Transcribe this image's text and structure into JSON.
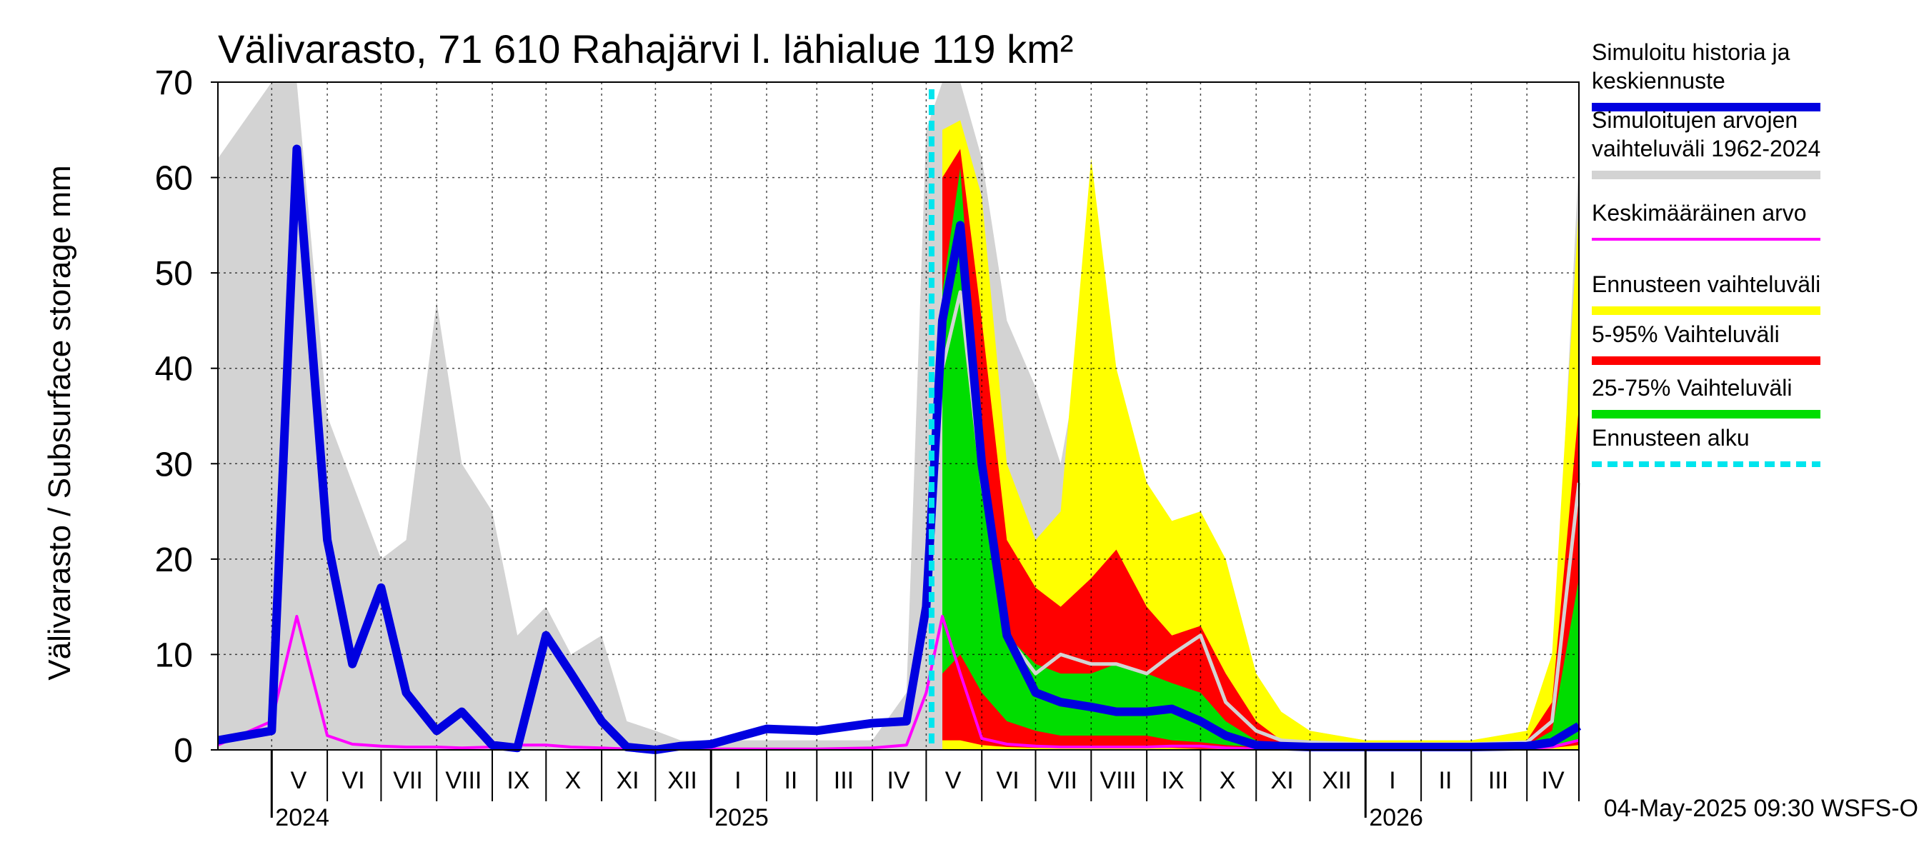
{
  "chart_data": {
    "type": "area",
    "title": "Välivarasto, 71 610 Rahajärvi l. lähialue 119 km²",
    "ylabel": "Välivarasto / Subsurface storage  mm",
    "ylim": [
      0,
      70
    ],
    "yticks": [
      0,
      10,
      20,
      30,
      40,
      50,
      60,
      70
    ],
    "grid": true,
    "legend_position": "right",
    "x_start": "2024-04-01",
    "x_end": "2026-04-30",
    "forecast_start": "2025-05-04",
    "months": [
      {
        "label": "V",
        "start": "2024-05-01",
        "end": "2024-05-31"
      },
      {
        "label": "VI",
        "start": "2024-06-01",
        "end": "2024-06-30"
      },
      {
        "label": "VII",
        "start": "2024-07-01",
        "end": "2024-07-31"
      },
      {
        "label": "VIII",
        "start": "2024-08-01",
        "end": "2024-08-31"
      },
      {
        "label": "IX",
        "start": "2024-09-01",
        "end": "2024-09-30"
      },
      {
        "label": "X",
        "start": "2024-10-01",
        "end": "2024-10-31"
      },
      {
        "label": "XI",
        "start": "2024-11-01",
        "end": "2024-11-30"
      },
      {
        "label": "XII",
        "start": "2024-12-01",
        "end": "2024-12-31"
      },
      {
        "label": "I",
        "start": "2025-01-01",
        "end": "2025-01-31"
      },
      {
        "label": "II",
        "start": "2025-02-01",
        "end": "2025-02-28"
      },
      {
        "label": "III",
        "start": "2025-03-01",
        "end": "2025-03-31"
      },
      {
        "label": "IV",
        "start": "2025-04-01",
        "end": "2025-04-30"
      },
      {
        "label": "V",
        "start": "2025-05-01",
        "end": "2025-05-31"
      },
      {
        "label": "VI",
        "start": "2025-06-01",
        "end": "2025-06-30"
      },
      {
        "label": "VII",
        "start": "2025-07-01",
        "end": "2025-07-31"
      },
      {
        "label": "VIII",
        "start": "2025-08-01",
        "end": "2025-08-31"
      },
      {
        "label": "IX",
        "start": "2025-09-01",
        "end": "2025-09-30"
      },
      {
        "label": "X",
        "start": "2025-10-01",
        "end": "2025-10-31"
      },
      {
        "label": "XI",
        "start": "2025-11-01",
        "end": "2025-11-30"
      },
      {
        "label": "XII",
        "start": "2025-12-01",
        "end": "2025-12-31"
      },
      {
        "label": "I",
        "start": "2026-01-01",
        "end": "2026-01-31"
      },
      {
        "label": "II",
        "start": "2026-02-01",
        "end": "2026-02-28"
      },
      {
        "label": "III",
        "start": "2026-03-01",
        "end": "2026-03-31"
      },
      {
        "label": "IV",
        "start": "2026-04-01",
        "end": "2026-04-30"
      }
    ],
    "years": [
      {
        "label": "2024",
        "date": "2024-05-01"
      },
      {
        "label": "2025",
        "date": "2025-01-01"
      },
      {
        "label": "2026",
        "date": "2026-01-01"
      }
    ],
    "dates": [
      "2024-04-01",
      "2024-05-01",
      "2024-05-15",
      "2024-06-01",
      "2024-06-15",
      "2024-07-01",
      "2024-07-15",
      "2024-08-01",
      "2024-08-15",
      "2024-09-01",
      "2024-09-15",
      "2024-10-01",
      "2024-10-15",
      "2024-11-01",
      "2024-11-15",
      "2024-12-01",
      "2024-12-15",
      "2025-01-01",
      "2025-02-01",
      "2025-03-01",
      "2025-04-01",
      "2025-04-20",
      "2025-05-01",
      "2025-05-10",
      "2025-05-20",
      "2025-06-01",
      "2025-06-15",
      "2025-07-01",
      "2025-07-15",
      "2025-08-01",
      "2025-08-15",
      "2025-09-01",
      "2025-09-15",
      "2025-10-01",
      "2025-10-15",
      "2025-11-01",
      "2025-11-15",
      "2025-12-01",
      "2026-01-01",
      "2026-02-01",
      "2026-03-01",
      "2026-04-01",
      "2026-04-15",
      "2026-04-30"
    ],
    "series": [
      {
        "name": "Simuloitujen arvojen vaihteluväli 1962-2024",
        "kind": "band",
        "color": "#d3d3d3",
        "low": [
          0,
          0,
          0,
          0,
          0,
          0,
          0,
          0,
          0,
          0,
          0,
          0,
          0,
          0,
          0,
          0,
          0,
          0,
          0,
          0,
          0,
          0,
          0,
          0,
          0,
          0,
          0,
          0,
          0,
          0,
          0,
          0,
          0,
          0,
          0,
          0,
          0,
          0,
          0,
          0,
          0,
          0,
          0,
          0
        ],
        "high": [
          62,
          70,
          70,
          35,
          28,
          20,
          22,
          47,
          30,
          25,
          12,
          15,
          10,
          12,
          3,
          2,
          1,
          1,
          1,
          1,
          1,
          6,
          65,
          70,
          70,
          62,
          45,
          38,
          30,
          48,
          40,
          25,
          18,
          20,
          20,
          8,
          3,
          2,
          1,
          1,
          1,
          2,
          5,
          62
        ]
      },
      {
        "name": "Ennusteen vaihteluväli",
        "kind": "band",
        "color": "#ffff00",
        "low": [
          null,
          null,
          null,
          null,
          null,
          null,
          null,
          null,
          null,
          null,
          null,
          null,
          null,
          null,
          null,
          null,
          null,
          null,
          null,
          null,
          null,
          null,
          null,
          0,
          0,
          0,
          0,
          0,
          0,
          0,
          0,
          0,
          0,
          0,
          0,
          0,
          0,
          0,
          0,
          0,
          0,
          0,
          0,
          0
        ],
        "high": [
          null,
          null,
          null,
          null,
          null,
          null,
          null,
          null,
          null,
          null,
          null,
          null,
          null,
          null,
          null,
          null,
          null,
          null,
          null,
          null,
          null,
          null,
          null,
          65,
          66,
          58,
          30,
          22,
          25,
          62,
          40,
          28,
          24,
          25,
          20,
          8,
          4,
          2,
          1,
          1,
          1,
          2,
          10,
          57
        ]
      },
      {
        "name": "5-95% Vaihteluväli",
        "kind": "band",
        "color": "#ff0000",
        "low": [
          null,
          null,
          null,
          null,
          null,
          null,
          null,
          null,
          null,
          null,
          null,
          null,
          null,
          null,
          null,
          null,
          null,
          null,
          null,
          null,
          null,
          null,
          null,
          1,
          1,
          0.5,
          0.3,
          0.2,
          0.2,
          0.2,
          0.2,
          0.2,
          0.2,
          0.1,
          0.1,
          0.1,
          0.1,
          0.1,
          0.1,
          0.1,
          0.1,
          0.1,
          0.2,
          0.5
        ],
        "high": [
          null,
          null,
          null,
          null,
          null,
          null,
          null,
          null,
          null,
          null,
          null,
          null,
          null,
          null,
          null,
          null,
          null,
          null,
          null,
          null,
          null,
          null,
          null,
          60,
          63,
          45,
          22,
          17,
          15,
          18,
          21,
          15,
          12,
          13,
          8,
          3,
          1,
          0.5,
          0.4,
          0.4,
          0.4,
          1,
          5,
          36
        ]
      },
      {
        "name": "25-75% Vaihteluväli",
        "kind": "band",
        "color": "#00dd00",
        "low": [
          null,
          null,
          null,
          null,
          null,
          null,
          null,
          null,
          null,
          null,
          null,
          null,
          null,
          null,
          null,
          null,
          null,
          null,
          null,
          null,
          null,
          null,
          null,
          8,
          10,
          6,
          3,
          2,
          1.5,
          1.5,
          1.5,
          1.5,
          1,
          0.8,
          0.5,
          0.3,
          0.2,
          0.2,
          0.2,
          0.2,
          0.2,
          0.2,
          0.3,
          1
        ],
        "high": [
          null,
          null,
          null,
          null,
          null,
          null,
          null,
          null,
          null,
          null,
          null,
          null,
          null,
          null,
          null,
          null,
          null,
          null,
          null,
          null,
          null,
          null,
          null,
          48,
          61,
          30,
          12,
          9,
          8,
          8,
          9,
          8,
          7,
          6,
          3,
          1,
          0.5,
          0.4,
          0.3,
          0.3,
          0.3,
          0.5,
          2,
          18
        ]
      },
      {
        "name": "Keskimääräinen arvo",
        "kind": "line",
        "color": "#ff00ff",
        "width": 4,
        "values": [
          0.5,
          3,
          14,
          1.5,
          0.6,
          0.4,
          0.3,
          0.3,
          0.2,
          0.3,
          0.5,
          0.5,
          0.3,
          0.2,
          0.1,
          0.1,
          0.1,
          0.1,
          0.1,
          0.1,
          0.2,
          0.5,
          6,
          14,
          8,
          1.2,
          0.6,
          0.4,
          0.3,
          0.3,
          0.3,
          0.3,
          0.4,
          0.4,
          0.2,
          0.1,
          0.1,
          0.1,
          0.1,
          0.1,
          0.1,
          0.1,
          0.3,
          1
        ]
      },
      {
        "name": "Ennusteen vaihteluväli — median (grey)",
        "kind": "line",
        "color": "#d3d3d3",
        "width": 5,
        "values": [
          null,
          null,
          null,
          null,
          null,
          null,
          null,
          null,
          null,
          null,
          null,
          null,
          null,
          null,
          null,
          null,
          null,
          null,
          null,
          null,
          null,
          null,
          null,
          40,
          48,
          28,
          12,
          8,
          10,
          9,
          9,
          8,
          10,
          12,
          5,
          2,
          1,
          0.8,
          0.6,
          0.6,
          0.6,
          0.8,
          3,
          28
        ]
      },
      {
        "name": "Simuloitu historia ja keskiennuste",
        "kind": "line",
        "color": "#0000e0",
        "width": 12,
        "values": [
          1,
          2,
          63,
          22,
          9,
          17,
          6,
          2,
          4,
          0.5,
          0.2,
          12,
          8,
          3,
          0.3,
          0,
          0.4,
          0.6,
          2.2,
          2,
          2.8,
          3,
          15,
          45,
          55,
          30,
          12,
          6,
          5,
          4.5,
          4,
          4,
          4.3,
          3,
          1.5,
          0.5,
          0.4,
          0.3,
          0.3,
          0.3,
          0.3,
          0.4,
          0.8,
          2.5
        ]
      }
    ],
    "legend": [
      {
        "label": "Simuloitu historia ja keskiennuste",
        "color": "#0000e0",
        "style": "solid"
      },
      {
        "label": "Simuloitujen arvojen vaihteluväli 1962-2024",
        "color": "#d3d3d3",
        "style": "solid"
      },
      {
        "label": "Keskimääräinen arvo",
        "color": "#ff00ff",
        "style": "thin"
      },
      {
        "label": "Ennusteen vaihteluväli",
        "color": "#ffff00",
        "style": "solid"
      },
      {
        "label": "5-95% Vaihteluväli",
        "color": "#ff0000",
        "style": "solid"
      },
      {
        "label": "25-75% Vaihteluväli",
        "color": "#00dd00",
        "style": "solid"
      },
      {
        "label": "Ennusteen alku",
        "color": "#00e5ee",
        "style": "dashed"
      }
    ],
    "footer": "04-May-2025 09:30 WSFS-O"
  }
}
